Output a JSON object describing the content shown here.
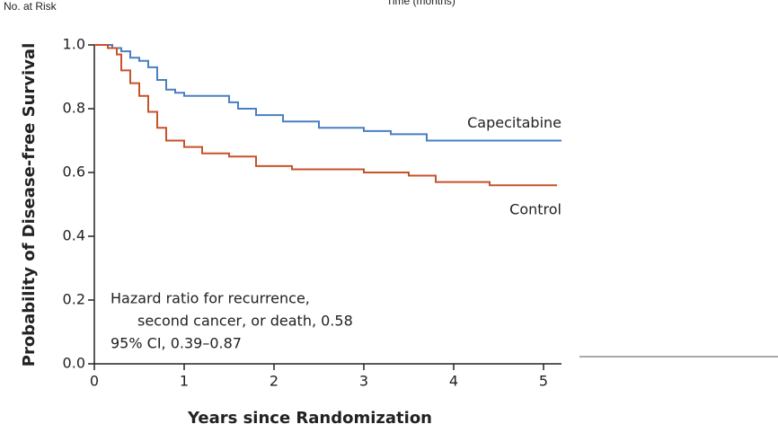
{
  "header": {
    "left_note": "No. at Risk",
    "top_note": "Time (months)"
  },
  "chart_data": {
    "type": "step",
    "xlabel": "Years since Randomization",
    "ylabel": "Probability of Disease-free Survival",
    "xlim": [
      0,
      5.2
    ],
    "ylim": [
      0,
      1
    ],
    "xticks": [
      0,
      1,
      2,
      3,
      4,
      5
    ],
    "yticks": [
      {
        "value": 0,
        "label": "0.0"
      },
      0.2,
      0.4,
      0.6,
      0.8,
      {
        "value": 1,
        "label": "1.0"
      }
    ],
    "annotations": [
      "Hazard ratio for recurrence,",
      "second cancer, or death, 0.58",
      "95% CI, 0.39–0.87"
    ],
    "series": [
      {
        "name": "Capecitabine",
        "color": "#4a7fc1",
        "x": [
          0,
          0.2,
          0.3,
          0.4,
          0.5,
          0.6,
          0.7,
          0.8,
          0.9,
          1.0,
          1.4,
          1.5,
          1.6,
          1.8,
          2.1,
          2.5,
          3.0,
          3.3,
          3.7,
          5.2
        ],
        "values": [
          1.0,
          0.99,
          0.98,
          0.96,
          0.95,
          0.93,
          0.89,
          0.86,
          0.85,
          0.84,
          0.84,
          0.82,
          0.8,
          0.78,
          0.76,
          0.74,
          0.73,
          0.72,
          0.7,
          0.7
        ]
      },
      {
        "name": "Control",
        "color": "#c7522a",
        "x": [
          0,
          0.15,
          0.25,
          0.3,
          0.4,
          0.5,
          0.6,
          0.7,
          0.8,
          1.0,
          1.2,
          1.5,
          1.8,
          2.2,
          3.0,
          3.5,
          3.8,
          4.4,
          5.15
        ],
        "values": [
          1.0,
          0.99,
          0.97,
          0.92,
          0.88,
          0.84,
          0.79,
          0.74,
          0.7,
          0.68,
          0.66,
          0.65,
          0.62,
          0.61,
          0.6,
          0.59,
          0.57,
          0.56,
          0.56
        ]
      }
    ]
  }
}
